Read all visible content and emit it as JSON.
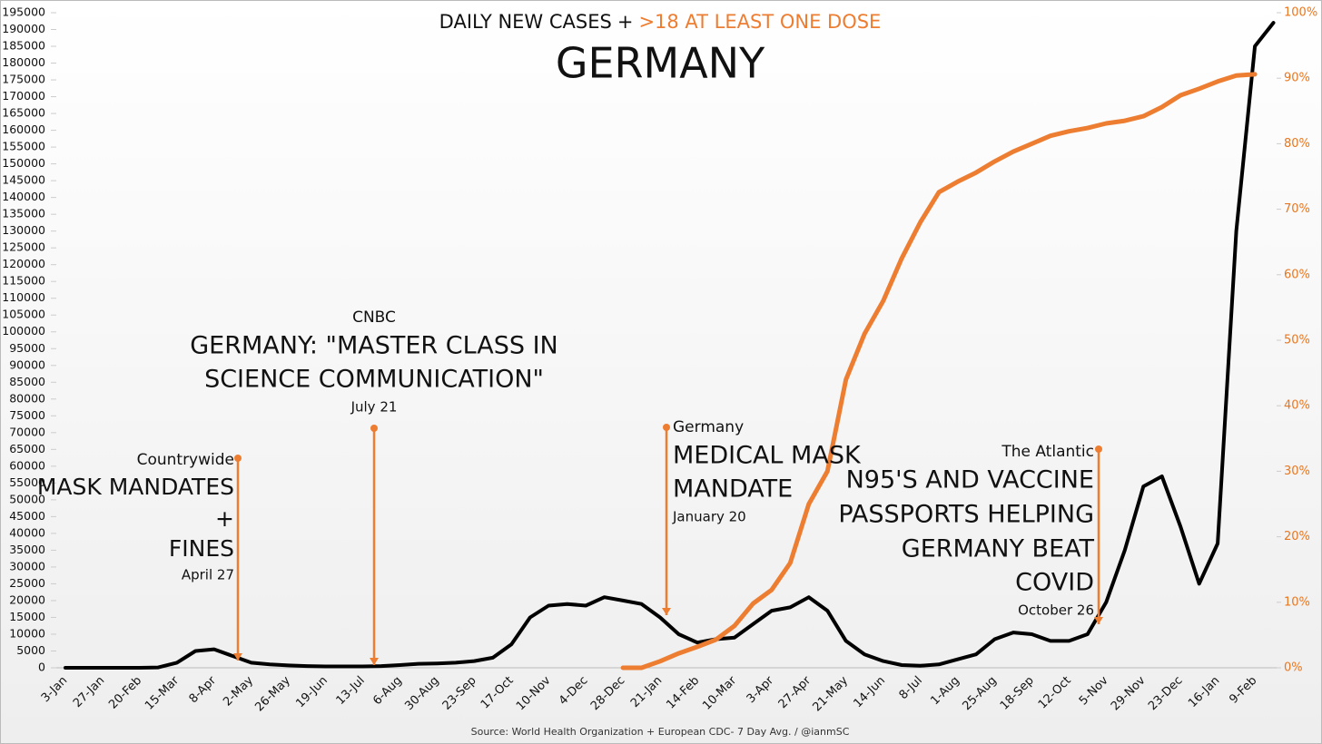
{
  "chart_data": {
    "type": "line",
    "title": "GERMANY",
    "header_joiner": "+",
    "source": "Source: World Health Organization + European CDC- 7 Day Avg. / @ianmSC",
    "categories": [
      "3-Jan",
      null,
      "27-Jan",
      null,
      "20-Feb",
      null,
      "15-Mar",
      null,
      "8-Apr",
      null,
      "2-May",
      null,
      "26-May",
      null,
      "19-Jun",
      null,
      "13-Jul",
      null,
      "6-Aug",
      null,
      "30-Aug",
      null,
      "23-Sep",
      null,
      "17-Oct",
      null,
      "10-Nov",
      null,
      "4-Dec",
      null,
      "28-Dec",
      null,
      "21-Jan",
      null,
      "14-Feb",
      null,
      "10-Mar",
      null,
      "3-Apr",
      null,
      "27-Apr",
      null,
      "21-May",
      null,
      "14-Jun",
      null,
      "8-Jul",
      null,
      "1-Aug",
      null,
      "25-Aug",
      null,
      "18-Sep",
      null,
      "12-Oct",
      null,
      "5-Nov",
      null,
      "29-Nov",
      null,
      "23-Dec",
      null,
      "16-Jan",
      null,
      "9-Feb",
      null
    ],
    "series": [
      {
        "name": "DAILY NEW CASES",
        "color": "#000000",
        "values": [
          0,
          0,
          0,
          0,
          0,
          100,
          1500,
          5000,
          5500,
          3500,
          1500,
          1000,
          700,
          500,
          400,
          400,
          400,
          500,
          800,
          1200,
          1300,
          1500,
          2000,
          3000,
          7000,
          15000,
          18500,
          19000,
          18500,
          21000,
          20000,
          19000,
          15000,
          10000,
          7500,
          8500,
          9000,
          13000,
          17000,
          18000,
          21000,
          17000,
          8000,
          4000,
          2000,
          800,
          600,
          1000,
          2500,
          4000,
          8500,
          10500,
          10000,
          8000,
          8000,
          10000,
          19500,
          35000,
          54000,
          57000,
          42000,
          25000,
          37000,
          130000,
          185000,
          192000
        ]
      },
      {
        "name": ">18 AT LEAST ONE DOSE",
        "color": "#ed7d31",
        "axis": "y2",
        "values": [
          null,
          null,
          null,
          null,
          null,
          null,
          null,
          null,
          null,
          null,
          null,
          null,
          null,
          null,
          null,
          null,
          null,
          null,
          null,
          null,
          null,
          null,
          null,
          null,
          null,
          null,
          null,
          null,
          null,
          null,
          0,
          0,
          1,
          2.2,
          3.2,
          4.3,
          6.4,
          9.8,
          11.9,
          16,
          25,
          30,
          44,
          51,
          56,
          62.5,
          68,
          72.6,
          74.2,
          75.6,
          77.3,
          78.8,
          80,
          81.2,
          81.9,
          82.4,
          83.1,
          83.5,
          84.2,
          85.6,
          87.4,
          88.4,
          89.5,
          90.4,
          90.6,
          null
        ]
      }
    ],
    "ylim": [
      0,
      195000
    ],
    "yticks": [
      0,
      5000,
      10000,
      15000,
      20000,
      25000,
      30000,
      35000,
      40000,
      45000,
      50000,
      55000,
      60000,
      65000,
      70000,
      75000,
      80000,
      85000,
      90000,
      95000,
      100000,
      105000,
      110000,
      115000,
      120000,
      125000,
      130000,
      135000,
      140000,
      145000,
      150000,
      155000,
      160000,
      165000,
      170000,
      175000,
      180000,
      185000,
      190000,
      195000
    ],
    "y2lim": [
      0,
      100
    ],
    "y2ticks": [
      {
        "value": 0,
        "label": "0%"
      },
      {
        "value": 10,
        "label": "10%"
      },
      {
        "value": 20,
        "label": "20%"
      },
      {
        "value": 30,
        "label": "30%"
      },
      {
        "value": 40,
        "label": "40%"
      },
      {
        "value": 50,
        "label": "50%"
      },
      {
        "value": 60,
        "label": "60%"
      },
      {
        "value": 70,
        "label": "70%"
      },
      {
        "value": 80,
        "label": "80%"
      },
      {
        "value": 90,
        "label": "90%"
      },
      {
        "value": 100,
        "label": "100%"
      }
    ],
    "annotations": [
      {
        "source": "Countrywide",
        "headline": [
          "MASK MANDATES",
          "+",
          "FINES"
        ],
        "date": "April 27"
      },
      {
        "source": "CNBC",
        "headline": [
          "GERMANY: \"MASTER CLASS IN",
          "SCIENCE COMMUNICATION\""
        ],
        "date": "July 21"
      },
      {
        "source": "Germany",
        "headline": [
          "MEDICAL MASK",
          "MANDATE"
        ],
        "date": "January 20"
      },
      {
        "source": "The Atlantic",
        "headline": [
          "N95'S AND VACCINE",
          "PASSPORTS HELPING",
          "GERMANY BEAT",
          "COVID"
        ],
        "date": "October 26"
      }
    ]
  }
}
